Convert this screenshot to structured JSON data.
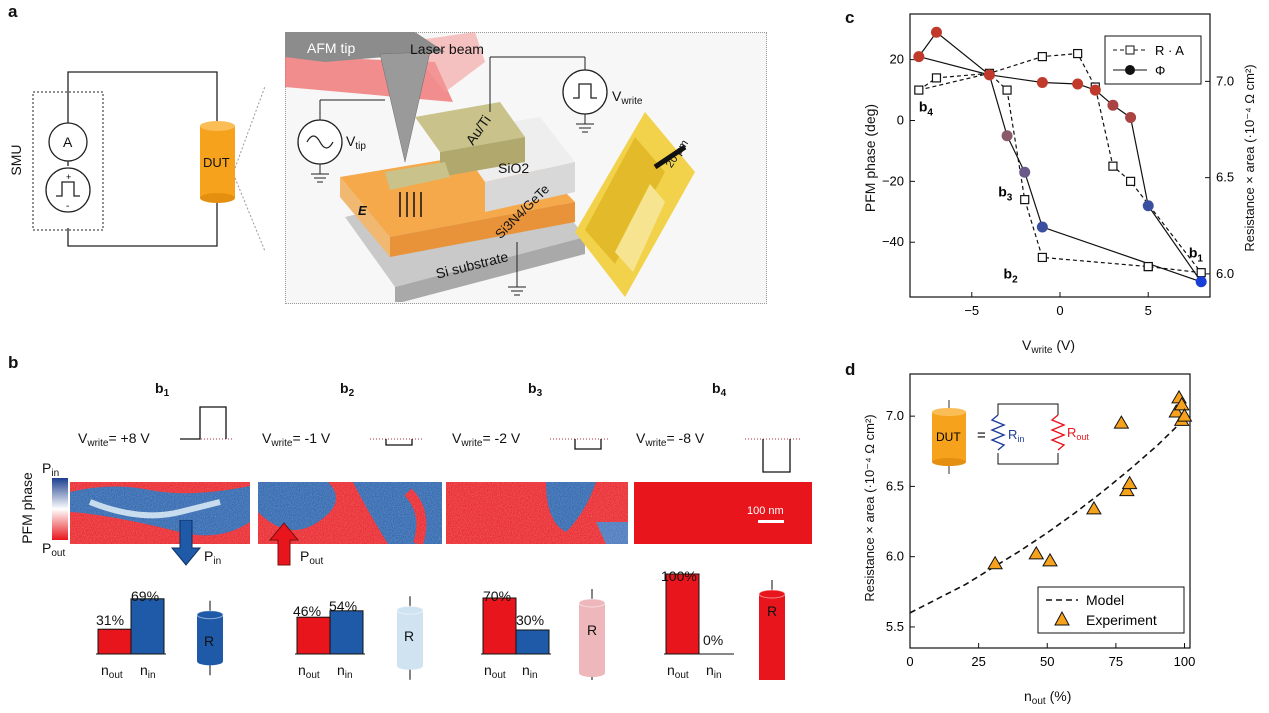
{
  "panel_labels": {
    "a": "a",
    "b": "b",
    "c": "c",
    "d": "d"
  },
  "panel_a": {
    "smu": "SMU",
    "ammeter": "A",
    "dut": "DUT",
    "afm_tip": "AFM tip",
    "laser_beam": "Laser beam",
    "au_ti": "Au/Ti",
    "sio2": "SiO2",
    "stack": "Si3N4/GeTe",
    "substrate": "Si substrate",
    "v_tip": "V",
    "v_tip_sub": "tip",
    "v_write": "V",
    "v_write_sub": "write",
    "field": "E",
    "scale": "20 μm"
  },
  "panel_b": {
    "ylabel": "PFM phase",
    "p_in": "P",
    "p_in_sub": "in",
    "p_out": "P",
    "p_out_sub": "out",
    "scale": "100 nm",
    "columns": [
      {
        "title": "b",
        "title_sub": "1",
        "vwrite": "= +8 V",
        "n_out": "31%",
        "n_in": "69%",
        "frac_out": 0.31,
        "frac_in": 0.69,
        "cyl": "R",
        "cyl_color": "#1e5aa8"
      },
      {
        "title": "b",
        "title_sub": "2",
        "vwrite": "= -1 V",
        "n_out": "46%",
        "n_in": "54%",
        "frac_out": 0.46,
        "frac_in": 0.54,
        "cyl": "R",
        "cyl_color": "#cfe3f1"
      },
      {
        "title": "b",
        "title_sub": "3",
        "vwrite": "= -2 V",
        "n_out": "70%",
        "n_in": "30%",
        "frac_out": 0.7,
        "frac_in": 0.3,
        "cyl": "R",
        "cyl_color": "#eeb7bb"
      },
      {
        "title": "b",
        "title_sub": "4",
        "vwrite": "= -8 V",
        "n_out": "100%",
        "n_in": "0%",
        "frac_out": 1.0,
        "frac_in": 0.0,
        "cyl": "R",
        "cyl_color": "#e8161c"
      }
    ],
    "v_label": "V",
    "v_label_sub": "write",
    "n_out": "n",
    "n_out_sub": "out",
    "n_in": "n",
    "n_in_sub": "in"
  },
  "chart_data": [
    {
      "type": "scatter",
      "panel": "c",
      "xlabel": "V",
      "xlabel_sub": "write",
      "xlabel_unit": "(V)",
      "ylabel": "PFM phase (deg)",
      "y2label": "Resistance × area (·10⁻⁴ Ω cm²)",
      "xlim": [
        -8.5,
        8.5
      ],
      "ylim": [
        -58,
        35
      ],
      "y2lim": [
        5.88,
        7.35
      ],
      "xticks": [
        -5,
        0,
        5
      ],
      "yticks": [
        -40,
        -20,
        0,
        20
      ],
      "y2ticks": [
        6.0,
        6.5,
        7.0
      ],
      "legend": {
        "ra": "R · A",
        "phi": "Φ",
        "position": "top-right"
      },
      "annotations": [
        {
          "text": "b",
          "sub": "1",
          "x": 7.3,
          "y": -45
        },
        {
          "text": "b",
          "sub": "2",
          "x": -3.2,
          "y": -52
        },
        {
          "text": "b",
          "sub": "3",
          "x": -3.5,
          "y": -25
        },
        {
          "text": "b",
          "sub": "4",
          "x": -8.0,
          "y": 3
        }
      ],
      "phi": [
        {
          "x": -8,
          "y": 21,
          "c": "#c0392b"
        },
        {
          "x": -7,
          "y": 29,
          "c": "#c0392b"
        },
        {
          "x": -4,
          "y": 15,
          "c": "#c0392b"
        },
        {
          "x": -1,
          "y": 12.5,
          "c": "#c0392b"
        },
        {
          "x": 1,
          "y": 12,
          "c": "#c0392b"
        },
        {
          "x": 2,
          "y": 10,
          "c": "#c0392b"
        },
        {
          "x": 3,
          "y": 5,
          "c": "#a94442"
        },
        {
          "x": 4,
          "y": 1,
          "c": "#a94442"
        },
        {
          "x": 5,
          "y": -28,
          "c": "#3b4fa0"
        },
        {
          "x": 8,
          "y": -53,
          "c": "#1a3fd8"
        },
        {
          "x": -1,
          "y": -35,
          "c": "#3b4fa0"
        },
        {
          "x": -2,
          "y": -17,
          "c": "#6a5a8a"
        },
        {
          "x": -3,
          "y": -5,
          "c": "#8a5a6a"
        }
      ],
      "phi_order": [
        0,
        1,
        2,
        3,
        4,
        5,
        6,
        7,
        8,
        9,
        10,
        11,
        12,
        2,
        0
      ],
      "ra": [
        {
          "x": -8,
          "y": 10
        },
        {
          "x": -7,
          "y": 14
        },
        {
          "x": -4,
          "y": 15.5
        },
        {
          "x": -3,
          "y": 10
        },
        {
          "x": -1,
          "y": -45
        },
        {
          "x": 5,
          "y": -48
        },
        {
          "x": 8,
          "y": -50
        },
        {
          "x": 5,
          "y": -48
        },
        {
          "x": 4,
          "y": -20
        },
        {
          "x": 3,
          "y": -15
        },
        {
          "x": 2,
          "y": 11
        },
        {
          "x": 1,
          "y": 22
        },
        {
          "x": -1,
          "y": 21
        },
        {
          "x": -2,
          "y": -26
        }
      ],
      "ra_order": [
        0,
        1,
        2,
        3,
        13,
        4,
        5,
        6,
        8,
        9,
        10,
        11,
        12,
        2,
        0
      ]
    },
    {
      "type": "scatter",
      "panel": "d",
      "xlabel": "n",
      "xlabel_sub": "out",
      "xlabel_unit": "(%)",
      "ylabel": "Resistance × area (·10⁻⁴ Ω cm²)",
      "xlim": [
        0,
        102
      ],
      "ylim": [
        5.35,
        7.3
      ],
      "xticks": [
        0,
        25,
        50,
        75,
        100
      ],
      "yticks": [
        5.5,
        6.0,
        6.5,
        7.0
      ],
      "legend": {
        "model": "Model",
        "experiment": "Experiment",
        "position": "bottom-right"
      },
      "inset": {
        "dut": "DUT",
        "eq": "=",
        "r_in": "R",
        "r_in_sub": "in",
        "r_out": "R",
        "r_out_sub": "out"
      },
      "model_x": [
        0,
        10,
        20,
        30,
        40,
        50,
        60,
        70,
        80,
        90,
        100
      ],
      "model_y": [
        5.6,
        5.7,
        5.8,
        5.92,
        6.04,
        6.17,
        6.31,
        6.46,
        6.62,
        6.79,
        6.98
      ],
      "experiment": [
        {
          "x": 31,
          "y": 5.95
        },
        {
          "x": 46,
          "y": 6.02
        },
        {
          "x": 51,
          "y": 5.97
        },
        {
          "x": 67,
          "y": 6.34
        },
        {
          "x": 79,
          "y": 6.47
        },
        {
          "x": 80,
          "y": 6.52
        },
        {
          "x": 77,
          "y": 6.95
        },
        {
          "x": 97,
          "y": 7.03
        },
        {
          "x": 98,
          "y": 7.13
        },
        {
          "x": 99,
          "y": 6.97
        },
        {
          "x": 99,
          "y": 7.08
        },
        {
          "x": 100,
          "y": 7.0
        }
      ]
    }
  ]
}
